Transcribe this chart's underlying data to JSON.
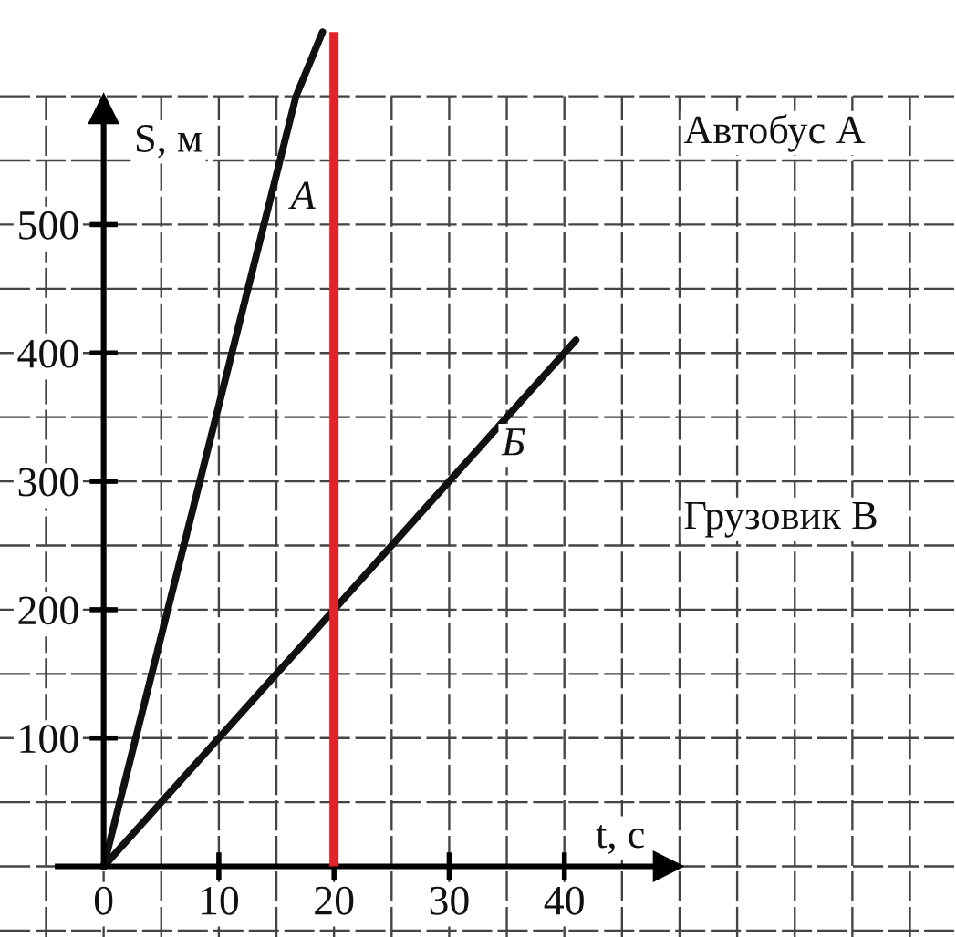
{
  "chart_data": {
    "type": "line",
    "xlabel": "t, с",
    "ylabel": "S, м",
    "series": [
      {
        "name": "А",
        "color": "#111111",
        "x": [
          0,
          16.7,
          19
        ],
        "values": [
          0,
          600,
          650
        ]
      },
      {
        "name": "Б",
        "color": "#111111",
        "x": [
          0,
          41
        ],
        "values": [
          0,
          410
        ]
      }
    ],
    "xlim": [
      -9,
      74
    ],
    "xticks": [
      {
        "value": -5,
        "label": null
      },
      0,
      {
        "value": 5,
        "label": null
      },
      10,
      {
        "value": 15,
        "label": null
      },
      20,
      {
        "value": 25,
        "label": null
      },
      30,
      {
        "value": 35,
        "label": null
      },
      40,
      {
        "value": 45,
        "label": null
      },
      {
        "value": 50,
        "label": null
      },
      {
        "value": 55,
        "label": null
      },
      {
        "value": 60,
        "label": null
      },
      {
        "value": 65,
        "label": null
      },
      {
        "value": 70,
        "label": null
      }
    ],
    "ylim": [
      -55,
      675
    ],
    "yticks": [
      {
        "value": -50,
        "label": null
      },
      {
        "value": 0,
        "label": null
      },
      {
        "value": 50,
        "label": null
      },
      100,
      {
        "value": 150,
        "label": null
      },
      200,
      {
        "value": 250,
        "label": null
      },
      300,
      {
        "value": 350,
        "label": null
      },
      400,
      {
        "value": 450,
        "label": null
      },
      500,
      {
        "value": 550,
        "label": null
      },
      {
        "value": 600,
        "label": null
      }
    ],
    "grid": true,
    "marker": "none",
    "line_style": "solid",
    "ref_lines": [
      {
        "axis": "x",
        "value": 20,
        "color": "#e2232a"
      }
    ],
    "annotations": [
      "Автобус А",
      "Грузовик В"
    ]
  }
}
